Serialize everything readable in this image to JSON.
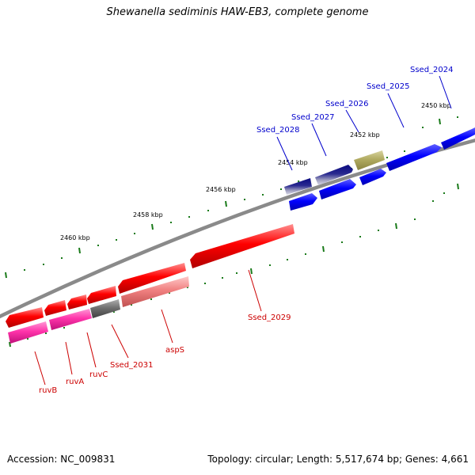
{
  "title": "Shewanella sediminis HAW-EB3, complete genome",
  "footer": {
    "accession": "Accession: NC_009831",
    "summary": "Topology: circular; Length: 5,517,674 bp; Genes: 4,661"
  },
  "colors": {
    "backbone": "#8a8a8a",
    "tick": "#1a7a1a",
    "forward_label": "#0000cc",
    "reverse_label": "#cc0000",
    "gene_red": "#ff0000",
    "gene_pink": "#ff33aa",
    "gene_salmon": "#f08080",
    "gene_gray": "#707070",
    "gene_navy": "#0a0a80",
    "gene_blue": "#0000ff",
    "gene_khaki": "#b0aa60"
  },
  "scale": {
    "unit": "kbp",
    "labels": [
      {
        "pos": 2450,
        "text": "2450 kbp"
      },
      {
        "pos": 2452,
        "text": "2452 kbp"
      },
      {
        "pos": 2454,
        "text": "2454 kbp"
      },
      {
        "pos": 2456,
        "text": "2456 kbp"
      },
      {
        "pos": 2458,
        "text": "2458 kbp"
      },
      {
        "pos": 2460,
        "text": "2460 kbp"
      }
    ]
  },
  "genes": [
    {
      "name": "Ssed_2024",
      "strand": "forward",
      "label": "Ssed_2024"
    },
    {
      "name": "Ssed_2025",
      "strand": "forward",
      "label": "Ssed_2025"
    },
    {
      "name": "Ssed_2026",
      "strand": "forward",
      "label": "Ssed_2026"
    },
    {
      "name": "Ssed_2027",
      "strand": "forward",
      "label": "Ssed_2027"
    },
    {
      "name": "Ssed_2028",
      "strand": "forward",
      "label": "Ssed_2028"
    },
    {
      "name": "Ssed_2029",
      "strand": "reverse",
      "label": "Ssed_2029"
    },
    {
      "name": "aspS",
      "strand": "reverse",
      "label": "aspS"
    },
    {
      "name": "Ssed_2031",
      "strand": "reverse",
      "label": "Ssed_2031"
    },
    {
      "name": "ruvC",
      "strand": "reverse",
      "label": "ruvC"
    },
    {
      "name": "ruvA",
      "strand": "reverse",
      "label": "ruvA"
    },
    {
      "name": "ruvB",
      "strand": "reverse",
      "label": "ruvB"
    }
  ]
}
